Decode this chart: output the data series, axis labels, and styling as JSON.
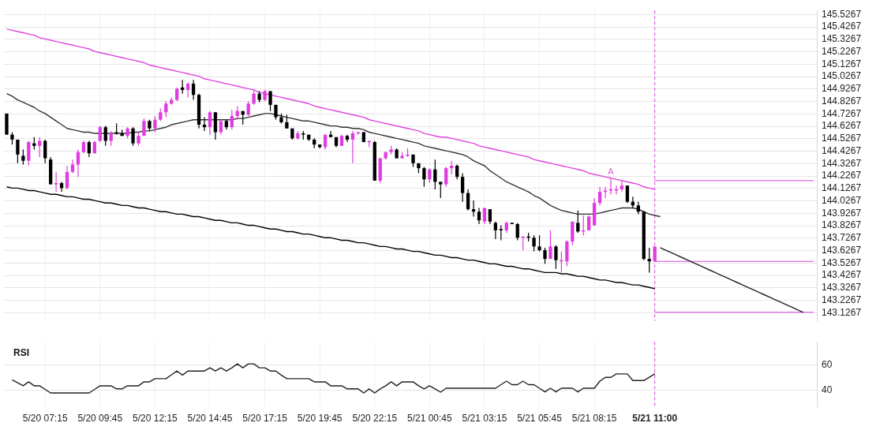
{
  "chart_data": [
    {
      "type": "candlestick",
      "ylim": [
        143.06,
        145.56
      ],
      "tick_labels": "y",
      "grid": true,
      "legend": false,
      "categories": [
        null,
        null,
        null,
        null,
        null,
        null,
        null,
        "5/20 07:15",
        null,
        null,
        null,
        null,
        null,
        null,
        null,
        null,
        null,
        "5/20 09:45",
        null,
        null,
        null,
        null,
        null,
        null,
        null,
        null,
        null,
        "5/20 12:15",
        null,
        null,
        null,
        null,
        null,
        null,
        null,
        null,
        null,
        "5/20 14:45",
        null,
        null,
        null,
        null,
        null,
        null,
        null,
        null,
        null,
        "5/20 17:15",
        null,
        null,
        null,
        null,
        null,
        null,
        null,
        null,
        null,
        "5/20 19:45",
        null,
        null,
        null,
        null,
        null,
        null,
        null,
        null,
        null,
        "5/20 22:15",
        null,
        null,
        null,
        null,
        null,
        null,
        null,
        null,
        null,
        "5/21 00:45",
        null,
        null,
        null,
        null,
        null,
        null,
        null,
        null,
        null,
        "5/21 03:15",
        null,
        null,
        null,
        null,
        null,
        null,
        null,
        null,
        null,
        "5/21 05:45",
        null,
        null,
        null,
        null,
        null,
        null,
        null,
        null,
        null,
        "5/21 08:15",
        null,
        null,
        null,
        null,
        null,
        null,
        null,
        null,
        null,
        null,
        "5/21 11:00",
        null,
        null,
        null,
        null,
        null,
        null,
        null,
        null,
        null,
        null,
        null,
        null,
        null,
        null,
        null,
        null,
        null,
        null,
        null,
        null,
        null,
        null,
        null,
        null,
        null,
        null,
        null,
        null,
        null
      ],
      "yticks": [
        143.1267,
        143.2267,
        143.3267,
        143.4267,
        143.5267,
        143.6267,
        143.7267,
        143.8267,
        143.9267,
        144.0267,
        144.1267,
        144.2267,
        144.3267,
        144.4267,
        144.5267,
        144.6267,
        144.7267,
        144.8267,
        144.9267,
        145.0267,
        145.1267,
        145.2267,
        145.3267,
        145.4267,
        145.5267
      ],
      "series": [
        {
          "type": "candlestick",
          "ohlc": [
            [
              144.73,
              144.73,
              144.56,
              144.56
            ],
            [
              144.56,
              144.58,
              144.48,
              144.52
            ],
            [
              144.52,
              144.52,
              144.33,
              144.4
            ],
            [
              144.39,
              144.44,
              144.32,
              144.35
            ],
            [
              144.35,
              144.51,
              144.31,
              144.5
            ],
            [
              144.49,
              144.54,
              144.44,
              144.47
            ],
            [
              144.47,
              144.54,
              144.38,
              144.51
            ],
            [
              144.51,
              144.52,
              144.33,
              144.37
            ],
            [
              144.36,
              144.38,
              144.16,
              144.16
            ],
            [
              144.16,
              144.26,
              144.1,
              144.17
            ],
            [
              144.17,
              144.18,
              144.1,
              144.13
            ],
            [
              144.13,
              144.31,
              144.12,
              144.26
            ],
            [
              144.26,
              144.36,
              144.25,
              144.32
            ],
            [
              144.32,
              144.44,
              144.22,
              144.42
            ],
            [
              144.42,
              144.51,
              144.41,
              144.5
            ],
            [
              144.5,
              144.51,
              144.38,
              144.41
            ],
            [
              144.41,
              144.51,
              144.41,
              144.5
            ],
            [
              144.51,
              144.63,
              144.5,
              144.62
            ],
            [
              144.62,
              144.63,
              144.47,
              144.51
            ],
            [
              144.51,
              144.59,
              144.47,
              144.57
            ],
            [
              144.58,
              144.65,
              144.56,
              144.57
            ],
            [
              144.57,
              144.6,
              144.55,
              144.55
            ],
            [
              144.55,
              144.62,
              144.53,
              144.61
            ],
            [
              144.61,
              144.62,
              144.47,
              144.49
            ],
            [
              144.49,
              144.58,
              144.47,
              144.55
            ],
            [
              144.55,
              144.69,
              144.55,
              144.67
            ],
            [
              144.67,
              144.68,
              144.59,
              144.61
            ],
            [
              144.61,
              144.71,
              144.58,
              144.68
            ],
            [
              144.68,
              144.77,
              144.67,
              144.74
            ],
            [
              144.74,
              144.83,
              144.7,
              144.81
            ],
            [
              144.81,
              144.86,
              144.8,
              144.84
            ],
            [
              144.84,
              144.94,
              144.83,
              144.93
            ],
            [
              144.94,
              145.0,
              144.89,
              144.92
            ],
            [
              144.92,
              144.98,
              144.86,
              144.97
            ],
            [
              144.97,
              145.0,
              144.84,
              144.88
            ],
            [
              144.88,
              144.89,
              144.61,
              144.64
            ],
            [
              144.64,
              144.7,
              144.59,
              144.62
            ],
            [
              144.62,
              144.75,
              144.56,
              144.74
            ],
            [
              144.74,
              144.74,
              144.52,
              144.58
            ],
            [
              144.58,
              144.67,
              144.56,
              144.67
            ],
            [
              144.67,
              144.68,
              144.6,
              144.62
            ],
            [
              144.62,
              144.76,
              144.6,
              144.71
            ],
            [
              144.71,
              144.79,
              144.68,
              144.75
            ],
            [
              144.75,
              144.75,
              144.64,
              144.72
            ],
            [
              144.72,
              144.83,
              144.71,
              144.81
            ],
            [
              144.81,
              144.91,
              144.8,
              144.89
            ],
            [
              144.89,
              144.91,
              144.82,
              144.84
            ],
            [
              144.84,
              144.92,
              144.83,
              144.91
            ],
            [
              144.91,
              144.91,
              144.75,
              144.8
            ],
            [
              144.8,
              144.8,
              144.68,
              144.7
            ],
            [
              144.7,
              144.73,
              144.65,
              144.66
            ],
            [
              144.66,
              144.72,
              144.61,
              144.61
            ],
            [
              144.61,
              144.61,
              144.52,
              144.53
            ],
            [
              144.53,
              144.59,
              144.52,
              144.57
            ],
            [
              144.57,
              144.59,
              144.52,
              144.56
            ],
            [
              144.56,
              144.56,
              144.51,
              144.52
            ],
            [
              144.52,
              144.53,
              144.45,
              144.48
            ],
            [
              144.48,
              144.48,
              144.45,
              144.46
            ],
            [
              144.46,
              144.56,
              144.44,
              144.56
            ],
            [
              144.56,
              144.59,
              144.54,
              144.54
            ],
            [
              144.54,
              144.54,
              144.46,
              144.47
            ],
            [
              144.47,
              144.56,
              144.47,
              144.55
            ],
            [
              144.55,
              144.56,
              144.5,
              144.52
            ],
            [
              144.52,
              144.59,
              144.33,
              144.57
            ],
            [
              144.57,
              144.58,
              144.56,
              144.58
            ],
            [
              144.58,
              144.58,
              144.5,
              144.5
            ],
            [
              144.5,
              144.51,
              144.46,
              144.51
            ],
            [
              144.5,
              144.51,
              144.19,
              144.19
            ],
            [
              144.19,
              144.37,
              144.17,
              144.37
            ],
            [
              144.37,
              144.42,
              144.36,
              144.42
            ],
            [
              144.42,
              144.47,
              144.4,
              144.44
            ],
            [
              144.44,
              144.45,
              144.37,
              144.37
            ],
            [
              144.37,
              144.42,
              144.37,
              144.39
            ],
            [
              144.39,
              144.45,
              144.38,
              144.4
            ],
            [
              144.4,
              144.4,
              144.3,
              144.33
            ],
            [
              144.33,
              144.33,
              144.25,
              144.29
            ],
            [
              144.29,
              144.3,
              144.14,
              144.2
            ],
            [
              144.2,
              144.29,
              144.17,
              144.28
            ],
            [
              144.28,
              144.36,
              144.12,
              144.18
            ],
            [
              144.18,
              144.18,
              144.05,
              144.16
            ],
            [
              144.16,
              144.3,
              144.14,
              144.29
            ],
            [
              144.29,
              144.35,
              144.24,
              144.31
            ],
            [
              144.31,
              144.32,
              144.2,
              144.22
            ],
            [
              144.22,
              144.25,
              144.02,
              144.09
            ],
            [
              144.09,
              144.12,
              143.95,
              143.96
            ],
            [
              143.96,
              144.03,
              143.9,
              143.94
            ],
            [
              143.94,
              143.97,
              143.84,
              143.87
            ],
            [
              143.86,
              143.97,
              143.84,
              143.97
            ],
            [
              143.96,
              143.96,
              143.84,
              143.86
            ],
            [
              143.85,
              143.86,
              143.72,
              143.79
            ],
            [
              143.8,
              143.83,
              143.71,
              143.79
            ],
            [
              143.79,
              143.86,
              143.77,
              143.85
            ],
            [
              143.85,
              143.85,
              143.84,
              143.84
            ],
            [
              143.84,
              143.85,
              143.71,
              143.73
            ],
            [
              143.73,
              143.74,
              143.63,
              143.74
            ],
            [
              143.74,
              143.77,
              143.7,
              143.73
            ],
            [
              143.73,
              143.75,
              143.62,
              143.66
            ],
            [
              143.66,
              143.75,
              143.62,
              143.63
            ],
            [
              143.63,
              143.65,
              143.52,
              143.56
            ],
            [
              143.56,
              143.79,
              143.56,
              143.66
            ],
            [
              143.66,
              143.67,
              143.48,
              143.55
            ],
            [
              143.54,
              143.62,
              143.45,
              143.55
            ],
            [
              143.54,
              143.71,
              143.5,
              143.7
            ],
            [
              143.7,
              143.86,
              143.67,
              143.86
            ],
            [
              143.85,
              143.95,
              143.77,
              143.78
            ],
            [
              143.78,
              143.91,
              143.75,
              143.79
            ],
            [
              143.79,
              143.91,
              143.79,
              143.9
            ],
            [
              143.83,
              144.05,
              143.83,
              144.01
            ],
            [
              144.01,
              144.14,
              143.99,
              144.1
            ],
            [
              144.1,
              144.14,
              144.05,
              144.11
            ],
            [
              144.11,
              144.2,
              144.08,
              144.12
            ],
            [
              144.11,
              144.15,
              144.08,
              144.12
            ],
            [
              144.12,
              144.19,
              144.1,
              144.15
            ],
            [
              144.15,
              144.15,
              144.01,
              144.02
            ],
            [
              144.02,
              144.06,
              143.97,
              143.99
            ],
            [
              143.99,
              144.02,
              143.92,
              143.94
            ],
            [
              143.94,
              143.94,
              143.55,
              143.56
            ],
            [
              143.56,
              143.65,
              143.45,
              143.54
            ],
            [
              143.54,
              143.66,
              143.54,
              143.66
            ],
            null,
            null,
            null,
            null,
            null,
            null,
            null,
            null,
            null,
            null,
            null,
            null,
            null,
            null,
            null,
            null,
            null,
            null,
            null,
            null,
            null,
            null,
            null,
            null,
            null,
            null,
            null,
            null,
            null
          ],
          "colors": [
            "#000000",
            "#000000",
            "#000000",
            "#000000",
            "#e03ce0",
            "#000000",
            "#e03ce0",
            "#000000",
            "#000000",
            "#e03ce0",
            "#000000",
            "#e03ce0",
            "#e03ce0",
            "#e03ce0",
            "#e03ce0",
            "#000000",
            "#e03ce0",
            "#e03ce0",
            "#000000",
            "#e03ce0",
            "#000000",
            "#000000",
            "#e03ce0",
            "#000000",
            "#e03ce0",
            "#e03ce0",
            "#000000",
            "#e03ce0",
            "#e03ce0",
            "#e03ce0",
            "#e03ce0",
            "#e03ce0",
            "#000000",
            "#e03ce0",
            "#000000",
            "#000000",
            "#000000",
            "#e03ce0",
            "#000000",
            "#e03ce0",
            "#000000",
            "#e03ce0",
            "#e03ce0",
            "#000000",
            "#e03ce0",
            "#e03ce0",
            "#000000",
            "#e03ce0",
            "#000000",
            "#000000",
            "#000000",
            "#000000",
            "#000000",
            "#e03ce0",
            "#000000",
            "#000000",
            "#000000",
            "#000000",
            "#e03ce0",
            "#000000",
            "#000000",
            "#e03ce0",
            "#000000",
            "#e03ce0",
            "#e03ce0",
            "#000000",
            "#e03ce0",
            "#000000",
            "#e03ce0",
            "#e03ce0",
            "#e03ce0",
            "#000000",
            "#e03ce0",
            "#e03ce0",
            "#000000",
            "#000000",
            "#000000",
            "#e03ce0",
            "#000000",
            "#000000",
            "#e03ce0",
            "#e03ce0",
            "#000000",
            "#000000",
            "#000000",
            "#000000",
            "#000000",
            "#e03ce0",
            "#000000",
            "#000000",
            "#000000",
            "#e03ce0",
            "#000000",
            "#000000",
            "#e03ce0",
            "#000000",
            "#000000",
            "#000000",
            "#000000",
            "#e03ce0",
            "#000000",
            "#e03ce0",
            "#e03ce0",
            "#e03ce0",
            "#000000",
            "#e03ce0",
            "#e03ce0",
            "#e03ce0",
            "#e03ce0",
            "#e03ce0",
            "#e03ce0",
            "#e03ce0",
            "#e03ce0",
            "#000000",
            "#000000",
            "#000000",
            "#000000",
            "#000000",
            "#e03ce0",
            null,
            null,
            null,
            null,
            null,
            null,
            null,
            null,
            null,
            null,
            null,
            null,
            null,
            null,
            null,
            null,
            null,
            null,
            null,
            null,
            null,
            null,
            null,
            null,
            null,
            null,
            null,
            null,
            null
          ]
        },
        {
          "type": "line",
          "color": "#333333",
          "values": [
            144.89,
            144.87,
            144.84,
            144.82,
            144.8,
            144.78,
            144.75,
            144.73,
            144.7,
            144.67,
            144.64,
            144.61,
            144.6,
            144.59,
            144.58,
            144.58,
            144.57,
            144.57,
            144.57,
            144.57,
            144.57,
            144.57,
            144.57,
            144.58,
            144.58,
            144.59,
            144.59,
            144.6,
            144.61,
            144.62,
            144.64,
            144.65,
            144.66,
            144.67,
            144.68,
            144.68,
            144.68,
            144.68,
            144.68,
            144.68,
            144.68,
            144.68,
            144.69,
            144.69,
            144.7,
            144.71,
            144.72,
            144.73,
            144.73,
            144.72,
            144.71,
            144.7,
            144.69,
            144.68,
            144.67,
            144.67,
            144.66,
            144.65,
            144.64,
            144.63,
            144.63,
            144.62,
            144.62,
            144.61,
            144.61,
            144.6,
            144.58,
            144.57,
            144.56,
            144.55,
            144.54,
            144.53,
            144.52,
            144.51,
            144.5,
            144.49,
            144.47,
            144.46,
            144.45,
            144.44,
            144.43,
            144.42,
            144.41,
            144.4,
            144.38,
            144.35,
            144.33,
            144.31,
            144.27,
            144.24,
            144.21,
            144.18,
            144.16,
            144.14,
            144.12,
            144.1,
            144.07,
            144.05,
            144.02,
            143.99,
            143.97,
            143.95,
            143.94,
            143.93,
            143.92,
            143.92,
            143.92,
            143.92,
            143.93,
            143.94,
            143.95,
            143.96,
            143.97,
            143.97,
            143.97,
            143.96,
            143.94,
            143.92,
            143.91,
            143.9,
            null,
            null,
            null,
            null,
            null,
            null,
            null,
            null,
            null,
            null,
            null,
            null,
            null,
            null,
            null,
            null,
            null,
            null,
            null,
            null,
            null,
            null,
            null,
            null,
            null,
            null,
            null,
            null
          ]
        },
        {
          "type": "line",
          "color": "#dd44dd",
          "values": [
            145.41,
            145.4,
            145.39,
            145.38,
            145.37,
            145.36,
            145.34,
            145.33,
            145.32,
            145.31,
            145.3,
            145.29,
            145.28,
            145.27,
            145.26,
            145.25,
            145.23,
            145.22,
            145.21,
            145.2,
            145.19,
            145.18,
            145.17,
            145.16,
            145.15,
            145.14,
            145.12,
            145.11,
            145.1,
            145.09,
            145.08,
            145.07,
            145.06,
            145.05,
            145.04,
            145.03,
            145.01,
            145.0,
            144.99,
            144.98,
            144.97,
            144.96,
            144.95,
            144.94,
            144.93,
            144.92,
            144.9,
            144.89,
            144.88,
            144.87,
            144.86,
            144.85,
            144.84,
            144.83,
            144.82,
            144.81,
            144.79,
            144.78,
            144.77,
            144.76,
            144.75,
            144.74,
            144.73,
            144.72,
            144.71,
            144.7,
            144.68,
            144.67,
            144.66,
            144.65,
            144.64,
            144.63,
            144.62,
            144.61,
            144.6,
            144.59,
            144.57,
            144.56,
            144.55,
            144.54,
            144.54,
            144.53,
            144.52,
            144.51,
            144.5,
            144.49,
            144.47,
            144.46,
            144.45,
            144.44,
            144.43,
            144.42,
            144.41,
            144.4,
            144.39,
            144.38,
            144.36,
            144.35,
            144.34,
            144.33,
            144.32,
            144.31,
            144.3,
            144.29,
            144.28,
            144.27,
            144.25,
            144.24,
            144.23,
            144.22,
            144.21,
            144.2,
            144.19,
            144.18,
            144.17,
            144.16,
            144.14,
            144.13,
            144.12,
            null,
            null,
            null,
            null,
            null,
            null,
            null,
            null,
            null,
            null,
            null,
            null,
            null,
            null,
            null,
            null,
            null,
            null,
            null,
            null,
            null,
            null,
            null,
            null,
            null,
            null,
            null,
            null,
            null
          ]
        },
        {
          "type": "line",
          "color": "#000000",
          "values": [
            144.14,
            144.13,
            144.13,
            144.12,
            144.11,
            144.11,
            144.1,
            144.09,
            144.08,
            144.08,
            144.07,
            144.06,
            144.06,
            144.05,
            144.04,
            144.04,
            144.03,
            144.02,
            144.01,
            144.01,
            144.0,
            143.99,
            143.99,
            143.98,
            143.97,
            143.97,
            143.96,
            143.95,
            143.94,
            143.94,
            143.93,
            143.92,
            143.92,
            143.91,
            143.9,
            143.9,
            143.89,
            143.88,
            143.87,
            143.87,
            143.86,
            143.85,
            143.85,
            143.84,
            143.83,
            143.83,
            143.82,
            143.81,
            143.8,
            143.8,
            143.79,
            143.78,
            143.78,
            143.77,
            143.76,
            143.76,
            143.75,
            143.74,
            143.73,
            143.73,
            143.72,
            143.71,
            143.71,
            143.7,
            143.69,
            143.69,
            143.68,
            143.67,
            143.66,
            143.66,
            143.65,
            143.64,
            143.64,
            143.63,
            143.62,
            143.62,
            143.61,
            143.6,
            143.59,
            143.59,
            143.58,
            143.57,
            143.57,
            143.56,
            143.55,
            143.55,
            143.54,
            143.53,
            143.52,
            143.52,
            143.51,
            143.5,
            143.5,
            143.49,
            143.48,
            143.48,
            143.47,
            143.46,
            143.45,
            143.45,
            143.45,
            143.44,
            143.44,
            143.43,
            143.42,
            143.42,
            143.41,
            143.4,
            143.39,
            143.39,
            143.38,
            143.37,
            143.37,
            143.36,
            143.35,
            143.35,
            143.34,
            143.33,
            143.32,
            null,
            null,
            null,
            null,
            null,
            null,
            null,
            null,
            null,
            null,
            null,
            null,
            null,
            null,
            null,
            null,
            null,
            null,
            null,
            null,
            null,
            null,
            null,
            null,
            null,
            null,
            null,
            null,
            null
          ]
        },
        {
          "type": "line",
          "color": "#222222",
          "values": [
            null,
            null,
            null,
            null,
            null,
            null,
            null,
            null,
            null,
            null,
            null,
            null,
            null,
            null,
            null,
            null,
            null,
            null,
            null,
            null,
            null,
            null,
            null,
            null,
            null,
            null,
            null,
            null,
            null,
            null,
            null,
            null,
            null,
            null,
            null,
            null,
            null,
            null,
            null,
            null,
            null,
            null,
            null,
            null,
            null,
            null,
            null,
            null,
            null,
            null,
            null,
            null,
            null,
            null,
            null,
            null,
            null,
            null,
            null,
            null,
            null,
            null,
            null,
            null,
            null,
            null,
            null,
            null,
            null,
            null,
            null,
            null,
            null,
            null,
            null,
            null,
            null,
            null,
            null,
            null,
            null,
            null,
            null,
            null,
            null,
            null,
            null,
            null,
            null,
            null,
            null,
            null,
            null,
            null,
            null,
            null,
            null,
            null,
            null,
            null,
            null,
            null,
            null,
            null,
            null,
            null,
            null,
            null,
            null,
            null,
            null,
            null,
            null,
            null,
            null,
            null,
            null,
            null,
            null,
            143.65,
            143.63,
            143.61,
            143.59,
            143.57,
            143.55,
            143.53,
            143.51,
            143.49,
            143.47,
            143.45,
            143.43,
            143.41,
            143.39,
            143.37,
            143.35,
            143.33,
            143.31,
            143.29,
            143.27,
            143.25,
            143.23,
            143.21,
            143.19,
            143.17,
            143.15,
            143.13,
            null,
            null
          ]
        }
      ],
      "ref_lines": [
        {
          "axis": "x",
          "value": "5/21 11:00",
          "color": "#dd44dd",
          "line_style": "dashed"
        },
        {
          "axis": "y",
          "value": 144.19,
          "color": "#dd44dd"
        },
        {
          "axis": "y",
          "value": 143.54,
          "color": "#dd44dd"
        },
        {
          "axis": "y",
          "value": 143.13,
          "color": "#dd44dd"
        }
      ],
      "annotations": [
        {
          "text": "A",
          "y": 144.22
        }
      ]
    },
    {
      "type": "line",
      "title": "RSI",
      "ylim": [
        27,
        78
      ],
      "yticks": [
        40,
        60
      ],
      "grid": true,
      "legend": false,
      "categories": [
        null,
        null,
        null,
        null,
        null,
        null,
        null,
        "5/20 07:15",
        null,
        null,
        null,
        null,
        null,
        null,
        null,
        null,
        null,
        "5/20 09:45",
        null,
        null,
        null,
        null,
        null,
        null,
        null,
        null,
        null,
        "5/20 12:15",
        null,
        null,
        null,
        null,
        null,
        null,
        null,
        null,
        null,
        "5/20 14:45",
        null,
        null,
        null,
        null,
        null,
        null,
        null,
        null,
        null,
        "5/20 17:15",
        null,
        null,
        null,
        null,
        null,
        null,
        null,
        null,
        null,
        "5/20 19:45",
        null,
        null,
        null,
        null,
        null,
        null,
        null,
        null,
        null,
        "5/20 22:15",
        null,
        null,
        null,
        null,
        null,
        null,
        null,
        null,
        null,
        "5/21 00:45",
        null,
        null,
        null,
        null,
        null,
        null,
        null,
        null,
        null,
        "5/21 03:15",
        null,
        null,
        null,
        null,
        null,
        null,
        null,
        null,
        null,
        "5/21 05:45",
        null,
        null,
        null,
        null,
        null,
        null,
        null,
        null,
        null,
        "5/21 08:15",
        null,
        null,
        null,
        null,
        null,
        null,
        null,
        null,
        null,
        null,
        "5/21 11:00",
        null,
        null,
        null,
        null,
        null,
        null,
        null,
        null,
        null,
        null,
        null,
        null,
        null,
        null,
        null,
        null,
        null,
        null,
        null,
        null,
        null,
        null,
        null,
        null,
        null,
        null,
        null,
        null,
        null
      ],
      "series": [
        {
          "color": "#222222",
          "values": [
            null,
            48.2,
            45.8,
            43.5,
            46.6,
            43.5,
            43.5,
            40.7,
            37.9,
            37.9,
            37.9,
            37.9,
            37.9,
            37.9,
            37.9,
            37.9,
            40.7,
            43.5,
            43.5,
            43.5,
            41.1,
            41.1,
            43.5,
            43.5,
            43.5,
            46.6,
            46.6,
            49.1,
            49.1,
            49.1,
            52.1,
            55.1,
            51.9,
            55.1,
            55.1,
            55.1,
            55.1,
            57.6,
            55.1,
            57.6,
            55.1,
            57.6,
            60.7,
            57.6,
            60.7,
            60.7,
            57.6,
            57.6,
            55.1,
            55.1,
            51.9,
            49.1,
            49.1,
            49.1,
            49.1,
            49.1,
            46.6,
            46.6,
            46.6,
            43.5,
            43.5,
            43.5,
            41.1,
            41.1,
            41.1,
            37.9,
            41.1,
            37.9,
            41.1,
            43.5,
            46.6,
            43.5,
            46.6,
            46.6,
            46.6,
            43.5,
            41.1,
            43.5,
            41.1,
            38.5,
            41.6,
            41.6,
            41.6,
            41.6,
            41.6,
            41.6,
            41.6,
            41.6,
            41.6,
            41.6,
            44.4,
            47.2,
            44.4,
            44.4,
            47.2,
            44.4,
            44.4,
            41.6,
            38.7,
            41.6,
            38.7,
            41.6,
            41.6,
            41.6,
            38.7,
            41.6,
            41.6,
            41.6,
            47.2,
            50.1,
            50.1,
            52.8,
            52.8,
            52.8,
            47.6,
            47.6,
            47.6,
            50.2,
            52.8,
            null,
            null,
            null,
            null,
            null,
            null,
            null,
            null,
            null,
            null,
            null,
            null,
            null,
            null,
            null,
            null,
            null,
            null,
            null,
            null,
            null,
            null,
            null,
            null,
            null,
            null,
            null,
            null,
            null
          ]
        }
      ],
      "ref_lines": [
        {
          "axis": "x",
          "value": "5/21 11:00",
          "color": "#dd44dd",
          "line_style": "dashed"
        }
      ]
    }
  ]
}
